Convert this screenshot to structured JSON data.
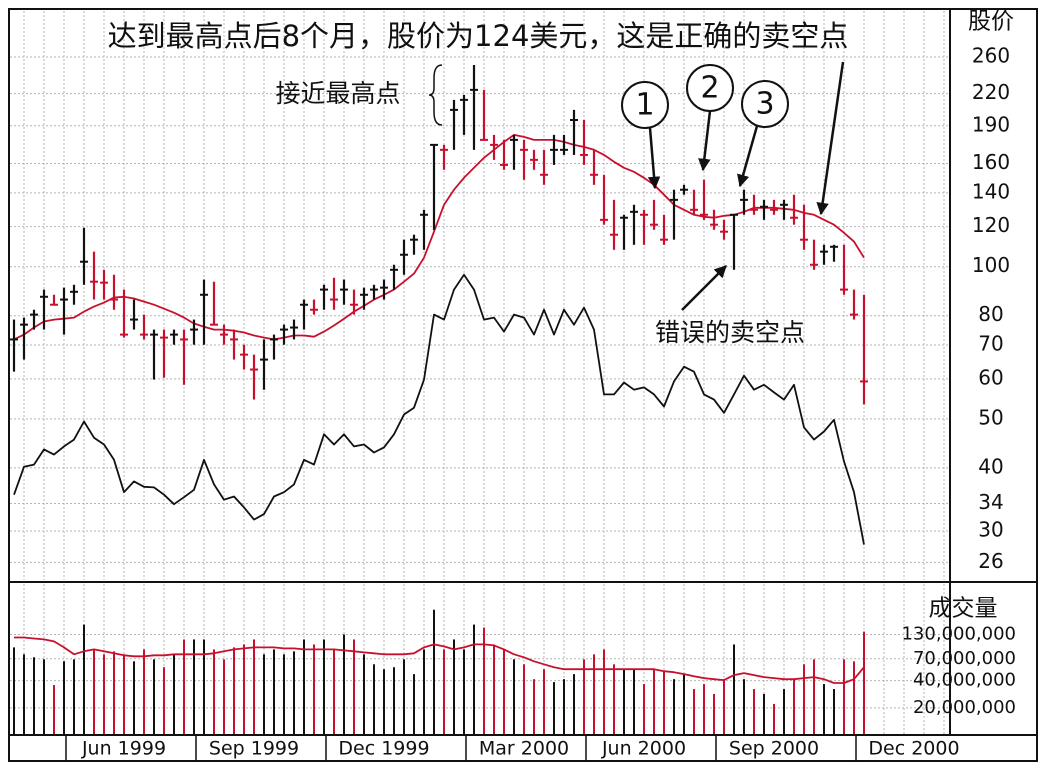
{
  "chart_data": {
    "type": "ohlc",
    "title": "达到最高点后8个月，股价为124美元，这是正确的卖空点",
    "annotations": [
      "接近最高点",
      "1",
      "2",
      "3",
      "错误的卖空点"
    ],
    "ylabel": "股价",
    "yscale": "log",
    "ylim": [
      24,
      322
    ],
    "yticks": [
      260,
      220,
      190,
      160,
      140,
      120,
      100,
      80,
      70,
      60,
      50,
      40,
      34,
      30,
      26
    ],
    "grid": true,
    "categories": [
      null,
      null,
      null,
      null,
      null,
      null,
      null,
      null,
      null,
      null,
      null,
      "Jun 1999",
      null,
      null,
      null,
      null,
      null,
      null,
      null,
      null,
      null,
      null,
      null,
      null,
      "Sep 1999",
      null,
      null,
      null,
      null,
      null,
      null,
      null,
      null,
      null,
      null,
      null,
      null,
      "Dec 1999",
      null,
      null,
      null,
      null,
      null,
      null,
      null,
      null,
      null,
      null,
      null,
      null,
      null,
      "Mar 2000",
      null,
      null,
      null,
      null,
      null,
      null,
      null,
      null,
      null,
      null,
      null,
      "Jun 2000",
      null,
      null,
      null,
      null,
      null,
      null,
      null,
      null,
      null,
      null,
      null,
      null,
      "Sep 2000",
      null,
      null,
      null,
      null,
      null,
      null,
      null,
      null,
      null,
      null,
      null,
      null,
      null,
      "Dec 2000"
    ],
    "ohlc": {
      "up_color": "#111111",
      "down_color": "#c8102e",
      "high": [
        78.6,
        79.3,
        82.2,
        90.1,
        88.0,
        90.9,
        92.1,
        119.4,
        107.1,
        98.6,
        96.4,
        90.1,
        86.1,
        80.4,
        75.1,
        75.1,
        75.1,
        75.1,
        78.6,
        94.3,
        93.4,
        76.8,
        75.1,
        70.1,
        67.0,
        71.8,
        73.4,
        76.8,
        78.6,
        86.1,
        86.1,
        92.1,
        95.1,
        94.3,
        90.1,
        90.9,
        92.1,
        94.3,
        100.9,
        113.1,
        115.7,
        129.6,
        174.2,
        174.2,
        213.8,
        218.8,
        250.6,
        223.8,
        182.3,
        178.2,
        182.3,
        178.2,
        170.3,
        170.3,
        182.3,
        182.3,
        204.3,
        195.1,
        170.3,
        152.0,
        135.6,
        126.7,
        132.6,
        129.6,
        135.6,
        126.7,
        142.0,
        145.2,
        142.0,
        148.6,
        129.6,
        123.8,
        126.7,
        142.0,
        138.8,
        135.6,
        135.6,
        135.6,
        138.8,
        132.6,
        113.1,
        110.5,
        110.5,
        110.5,
        90.1,
        88.0,
        null,
        null,
        null,
        null,
        null
      ],
      "low": [
        62.0,
        65.5,
        75.1,
        75.1,
        84.1,
        73.4,
        84.1,
        92.1,
        86.1,
        86.1,
        82.2,
        72.4,
        75.1,
        71.8,
        59.8,
        60.3,
        70.1,
        58.4,
        70.1,
        70.1,
        76.8,
        70.1,
        65.5,
        62.6,
        54.6,
        57.1,
        65.5,
        70.1,
        71.8,
        75.1,
        80.4,
        82.2,
        82.2,
        84.1,
        80.4,
        82.2,
        86.1,
        86.1,
        90.1,
        96.4,
        105.6,
        108.0,
        118.3,
        155.5,
        170.3,
        182.3,
        170.3,
        178.2,
        162.7,
        155.5,
        155.5,
        148.6,
        155.5,
        145.2,
        159.0,
        166.4,
        166.4,
        159.0,
        145.2,
        121.1,
        108.0,
        108.0,
        110.5,
        110.5,
        118.3,
        110.5,
        113.1,
        138.8,
        126.7,
        123.8,
        118.3,
        113.1,
        98.6,
        126.7,
        126.7,
        123.8,
        126.7,
        123.8,
        121.1,
        108.0,
        98.6,
        100.9,
        102.3,
        88.0,
        78.6,
        53.4,
        null,
        null,
        null,
        null,
        null
      ],
      "close": [
        71.8,
        76.8,
        80.4,
        87.2,
        84.1,
        86.1,
        89.2,
        102.3,
        93.4,
        93.0,
        86.1,
        73.4,
        78.6,
        73.4,
        73.4,
        72.4,
        73.4,
        71.8,
        75.1,
        88.0,
        76.8,
        73.4,
        71.8,
        67.0,
        62.6,
        65.5,
        71.8,
        75.1,
        75.8,
        84.1,
        82.2,
        90.1,
        86.1,
        90.1,
        84.1,
        88.0,
        90.1,
        90.9,
        98.6,
        105.6,
        113.1,
        126.7,
        174.2,
        170.3,
        204.3,
        213.8,
        223.8,
        178.2,
        174.2,
        159.0,
        178.2,
        170.3,
        162.7,
        152.0,
        170.3,
        170.3,
        195.1,
        166.4,
        152.0,
        123.8,
        115.7,
        125.0,
        128.4,
        126.7,
        121.1,
        113.1,
        135.6,
        142.0,
        129.6,
        126.7,
        121.1,
        117.3,
        126.7,
        135.6,
        129.6,
        131.4,
        129.6,
        132.6,
        125.0,
        113.1,
        100.9,
        107.1,
        109.5,
        90.1,
        80.4,
        59.3,
        null,
        null,
        null,
        null,
        null
      ]
    },
    "lines": [
      {
        "color": "#c8102e",
        "values": [
          71.8,
          73.4,
          75.8,
          77.9,
          78.6,
          78.9,
          79.3,
          81.5,
          83.4,
          84.9,
          86.9,
          87.2,
          86.5,
          85.3,
          84.1,
          82.6,
          81.1,
          79.3,
          77.2,
          76.1,
          75.1,
          75.1,
          74.7,
          74.1,
          73.1,
          72.4,
          71.8,
          72.4,
          73.1,
          73.1,
          72.7,
          74.4,
          76.5,
          78.9,
          81.5,
          83.7,
          86.1,
          88.0,
          90.1,
          93.4,
          96.9,
          104.2,
          117.3,
          132.6,
          142.0,
          149.9,
          156.9,
          164.2,
          170.3,
          176.6,
          182.3,
          180.6,
          178.2,
          178.2,
          178.2,
          176.6,
          174.2,
          172.6,
          170.3,
          166.4,
          161.3,
          156.9,
          154.1,
          149.9,
          145.2,
          138.8,
          132.6,
          129.6,
          126.7,
          125.5,
          125.0,
          126.1,
          126.7,
          128.4,
          130.8,
          130.8,
          130.8,
          130.2,
          129.6,
          127.8,
          126.7,
          123.8,
          121.1,
          116.7,
          112.1,
          104.2,
          null,
          null,
          null,
          null,
          null
        ]
      },
      {
        "color": "#111111",
        "values": [
          35.4,
          40.2,
          40.6,
          43.5,
          42.5,
          44.1,
          45.5,
          49.4,
          45.9,
          44.5,
          41.5,
          35.8,
          37.6,
          36.7,
          36.6,
          35.4,
          33.9,
          35.0,
          36.2,
          41.5,
          37.1,
          34.6,
          35.1,
          33.4,
          31.6,
          32.4,
          35.1,
          35.8,
          37.1,
          41.5,
          40.6,
          46.6,
          44.5,
          46.6,
          44.1,
          44.5,
          42.9,
          43.9,
          46.6,
          51.0,
          52.6,
          59.8,
          80.4,
          78.6,
          90.1,
          96.4,
          90.1,
          78.6,
          79.3,
          74.4,
          80.4,
          79.3,
          73.4,
          82.2,
          73.4,
          82.2,
          76.8,
          83.0,
          75.1,
          55.9,
          55.9,
          59.0,
          57.1,
          57.7,
          55.9,
          52.9,
          59.3,
          63.4,
          62.0,
          55.9,
          54.6,
          51.4,
          55.9,
          60.9,
          57.1,
          58.4,
          56.4,
          54.6,
          58.4,
          48.1,
          45.5,
          47.2,
          49.8,
          41.2,
          35.8,
          28.2,
          null,
          null,
          null,
          null,
          null
        ]
      }
    ],
    "volume": {
      "ylabel": "成交量",
      "yscale": "log",
      "ylim": [
        10000000,
        460000000
      ],
      "yticks": [
        {
          "value": 130000000,
          "label": "130,000,000"
        },
        {
          "value": 70000000,
          "label": "70,000,000"
        },
        {
          "value": 40000000,
          "label": "40,000,000"
        },
        {
          "value": 20000000,
          "label": "20,000,000"
        }
      ],
      "values": [
        93600000,
        78400000,
        72700000,
        69000000,
        35800000,
        65600000,
        69000000,
        167500000,
        88900000,
        78400000,
        84600000,
        78400000,
        65600000,
        88900000,
        69000000,
        56400000,
        78400000,
        114600000,
        114600000,
        114600000,
        88900000,
        69000000,
        93600000,
        100900000,
        114600000,
        78400000,
        88900000,
        78400000,
        84600000,
        114600000,
        100900000,
        114600000,
        88900000,
        130000000,
        114600000,
        78400000,
        60800000,
        53600000,
        56400000,
        69000000,
        47300000,
        88900000,
        244800000,
        88900000,
        114600000,
        88900000,
        167500000,
        155200000,
        100900000,
        88900000,
        69000000,
        60800000,
        41600000,
        53600000,
        38600000,
        41600000,
        47300000,
        69000000,
        78400000,
        88900000,
        60800000,
        53600000,
        53600000,
        36700000,
        53600000,
        51000000,
        41600000,
        47300000,
        32300000,
        36700000,
        28500000,
        41600000,
        100900000,
        41600000,
        32300000,
        28500000,
        22100000,
        32300000,
        41600000,
        60800000,
        69000000,
        36700000,
        32300000,
        69000000,
        65600000,
        140100000,
        null,
        null,
        null,
        null,
        null
      ],
      "ma": {
        "color": "#c8102e",
        "values": [
          120500000,
          120500000,
          117500000,
          114600000,
          108900000,
          93600000,
          78400000,
          84600000,
          88900000,
          84600000,
          80400000,
          76500000,
          74500000,
          74500000,
          76500000,
          76500000,
          78400000,
          78400000,
          78400000,
          78400000,
          80400000,
          84600000,
          88900000,
          91300000,
          93600000,
          93600000,
          93600000,
          91300000,
          91300000,
          88900000,
          88900000,
          88900000,
          88900000,
          86700000,
          84600000,
          82400000,
          80400000,
          78400000,
          78400000,
          78400000,
          80400000,
          93600000,
          100900000,
          95900000,
          88900000,
          93600000,
          100900000,
          100900000,
          98400000,
          88900000,
          78400000,
          72700000,
          65600000,
          60800000,
          56400000,
          53600000,
          53600000,
          53600000,
          53600000,
          53600000,
          53600000,
          53600000,
          53600000,
          53600000,
          53600000,
          51000000,
          49700000,
          47300000,
          44900000,
          42700000,
          41600000,
          40600000,
          46100000,
          48500000,
          46100000,
          43800000,
          42700000,
          41600000,
          41600000,
          42700000,
          43800000,
          41600000,
          37700000,
          37700000,
          41600000,
          56400000,
          null,
          null,
          null,
          null,
          null
        ]
      }
    }
  }
}
